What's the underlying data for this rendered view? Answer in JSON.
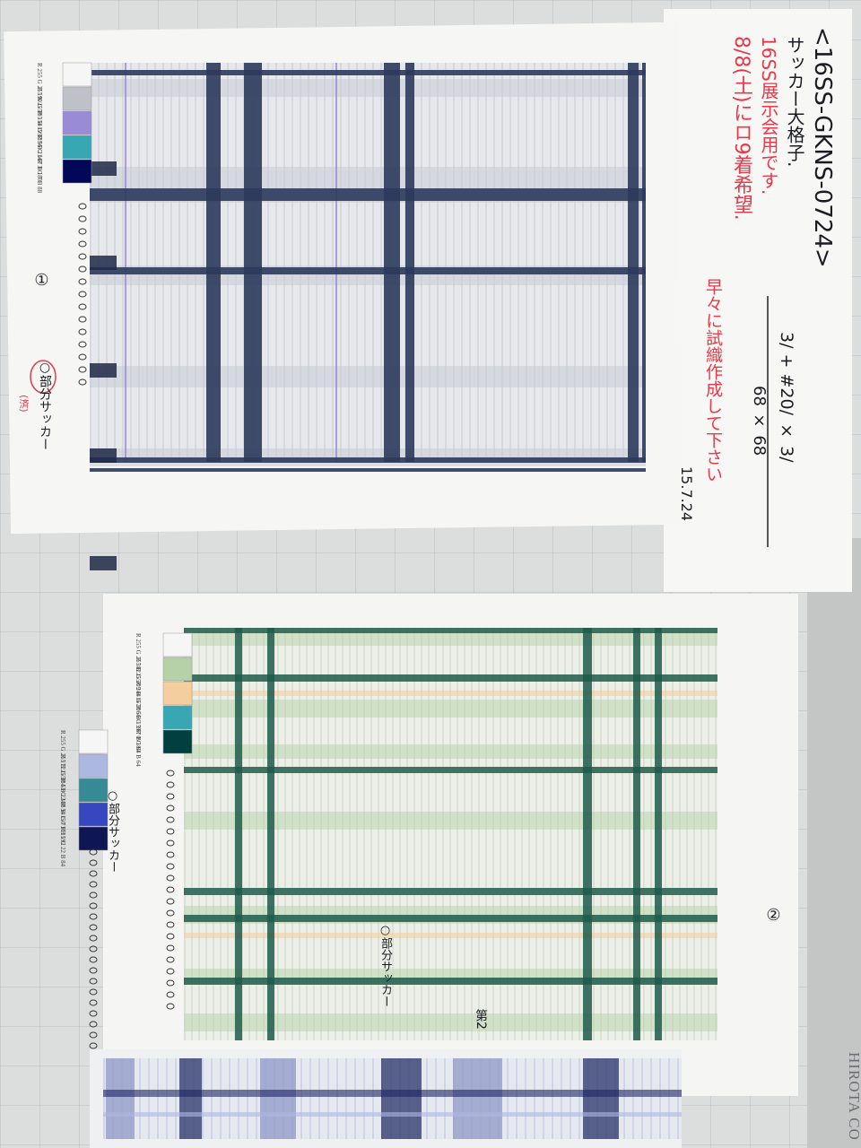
{
  "left_notes": {
    "title": "<16SS-GKNS-0724>",
    "line1": "サッカー大格子.",
    "line2": "16SS展示会用です.",
    "line3": "8/8(土)にロ9着希望.",
    "line4": "早々に試織作成して下さい",
    "spec_top": "3/ + #20/ × 3/",
    "spec_bottom": "68 × 68",
    "date": "15.7.24",
    "sample_no": "①",
    "sample_label": "○部分サッカー",
    "sample_remark": "(済)"
  },
  "right_notes": {
    "sample_no": "②",
    "label_a": "○部分サッカー",
    "label_b": "○部分サッカー",
    "bottom": "第2"
  },
  "left_swatches": [
    {
      "label": "R 255 G 255 B 255",
      "color": "#f6f6f6"
    },
    {
      "label": "R 190 G 193 B 199",
      "color": "#bec1c7"
    },
    {
      "label": "R 154 G 139 B 214",
      "color": "#9a8bd6"
    },
    {
      "label": "R 56 G 167 B 180",
      "color": "#38a7b4"
    },
    {
      "label": "R 3 G 7 B 88",
      "color": "#030758"
    }
  ],
  "right_swatches_a": [
    {
      "label": "R 255 G 255 B 255",
      "color": "#f6f6f6"
    },
    {
      "label": "R 182 G 209 B 167",
      "color": "#b6d1a7"
    },
    {
      "label": "R 244 G 206 B 159",
      "color": "#f4ce9f"
    },
    {
      "label": "R 56 G 167 B 180",
      "color": "#38a7b4"
    },
    {
      "label": "R 0 G 64 B 64",
      "color": "#004040"
    }
  ],
  "right_swatches_b": [
    {
      "label": "R 255 G 255 B 255",
      "color": "#f6f6f6"
    },
    {
      "label": "R 172 G 184 B 224",
      "color": "#acb8e0"
    },
    {
      "label": "R 53 G 138 B 150",
      "color": "#358a96"
    },
    {
      "label": "R 54 G 71 B 192",
      "color": "#3647c0"
    },
    {
      "label": "R 15 G 22 B 84",
      "color": "#0f1654"
    }
  ],
  "brand": "HIROTA CO"
}
